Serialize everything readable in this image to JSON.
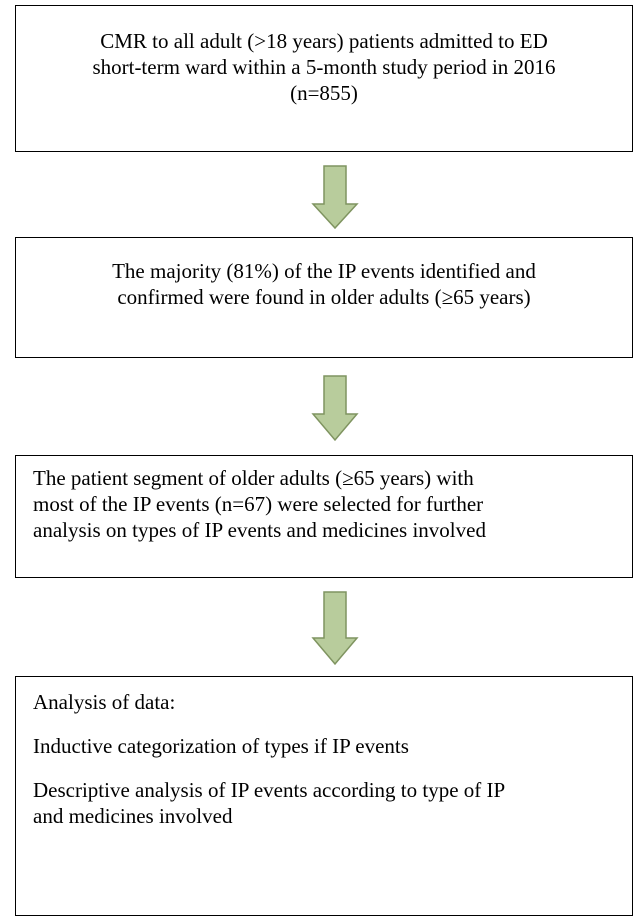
{
  "nodes": [
    {
      "lines": [
        "CMR to all adult (>18 years) patients admitted to ED",
        "short-term ward within a 5-month study period in 2016",
        "(n=855)"
      ]
    },
    {
      "lines": [
        "The majority (81%) of the IP events identified and",
        "confirmed were found in older adults (≥65 years)"
      ]
    },
    {
      "lines": [
        "The patient segment of older adults (≥65 years) with",
        "most of the IP events (n=67) were selected for further",
        "analysis on types of IP events and medicines involved"
      ]
    },
    {
      "paragraphs": [
        [
          "Analysis of data:"
        ],
        [
          "Inductive categorization of types if IP events"
        ],
        [
          "Descriptive analysis of IP events according to type of IP",
          "and medicines involved"
        ]
      ]
    }
  ]
}
